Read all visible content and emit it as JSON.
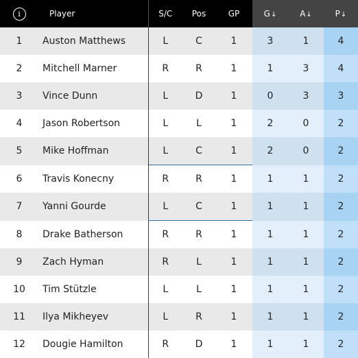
{
  "header": {
    "info_icon": "i",
    "player": "Player",
    "sc": "S/C",
    "pos": "Pos",
    "gp": "GP",
    "g": "G",
    "a": "A",
    "p": "P",
    "sort_arrow": "↓"
  },
  "rows": [
    {
      "rank": "1",
      "player": "Auston Matthews",
      "sc": "L",
      "pos": "C",
      "gp": "1",
      "g": "3",
      "a": "1",
      "p": "4"
    },
    {
      "rank": "2",
      "player": "Mitchell Marner",
      "sc": "R",
      "pos": "R",
      "gp": "1",
      "g": "1",
      "a": "3",
      "p": "4"
    },
    {
      "rank": "3",
      "player": "Vince Dunn",
      "sc": "L",
      "pos": "D",
      "gp": "1",
      "g": "0",
      "a": "3",
      "p": "3"
    },
    {
      "rank": "4",
      "player": "Jason Robertson",
      "sc": "L",
      "pos": "L",
      "gp": "1",
      "g": "2",
      "a": "0",
      "p": "2"
    },
    {
      "rank": "5",
      "player": "Mike Hoffman",
      "sc": "L",
      "pos": "C",
      "gp": "1",
      "g": "2",
      "a": "0",
      "p": "2"
    },
    {
      "rank": "6",
      "player": "Travis Konecny",
      "sc": "R",
      "pos": "R",
      "gp": "1",
      "g": "1",
      "a": "1",
      "p": "2"
    },
    {
      "rank": "7",
      "player": "Yanni Gourde",
      "sc": "L",
      "pos": "C",
      "gp": "1",
      "g": "1",
      "a": "1",
      "p": "2"
    },
    {
      "rank": "8",
      "player": "Drake Batherson",
      "sc": "R",
      "pos": "R",
      "gp": "1",
      "g": "1",
      "a": "1",
      "p": "2"
    },
    {
      "rank": "9",
      "player": "Zach Hyman",
      "sc": "R",
      "pos": "L",
      "gp": "1",
      "g": "1",
      "a": "1",
      "p": "2"
    },
    {
      "rank": "10",
      "player": "Tim Stützle",
      "sc": "L",
      "pos": "L",
      "gp": "1",
      "g": "1",
      "a": "1",
      "p": "2"
    },
    {
      "rank": "11",
      "player": "Ilya Mikheyev",
      "sc": "L",
      "pos": "R",
      "gp": "1",
      "g": "1",
      "a": "1",
      "p": "2"
    },
    {
      "rank": "12",
      "player": "Dougie Hamilton",
      "sc": "R",
      "pos": "D",
      "gp": "1",
      "g": "1",
      "a": "1",
      "p": "2"
    }
  ]
}
